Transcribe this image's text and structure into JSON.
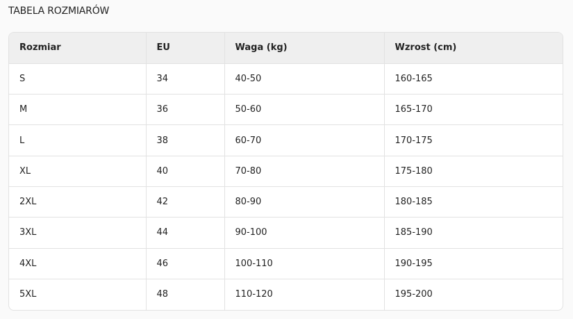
{
  "title": "TABELA ROZMIARÓW",
  "table": {
    "headers": [
      "Rozmiar",
      "EU",
      "Waga (kg)",
      "Wzrost (cm)"
    ],
    "rows": [
      [
        "S",
        "34",
        "40-50",
        "160-165"
      ],
      [
        "M",
        "36",
        "50-60",
        "165-170"
      ],
      [
        "L",
        "38",
        "60-70",
        "170-175"
      ],
      [
        "XL",
        "40",
        "70-80",
        "175-180"
      ],
      [
        "2XL",
        "42",
        "80-90",
        "180-185"
      ],
      [
        "3XL",
        "44",
        "90-100",
        "185-190"
      ],
      [
        "4XL",
        "46",
        "100-110",
        "190-195"
      ],
      [
        "5XL",
        "48",
        "110-120",
        "195-200"
      ]
    ]
  }
}
